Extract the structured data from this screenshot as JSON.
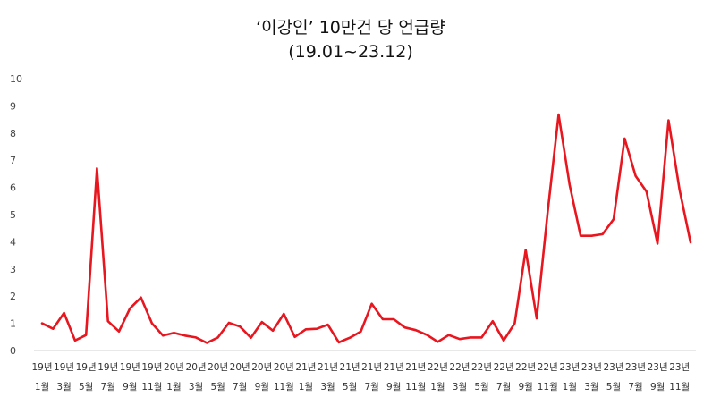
{
  "chart_data": {
    "type": "line",
    "title": "‘이강인’ 10만건 당 언급량",
    "subtitle": "(19.01~23.12)",
    "xlabel": "",
    "ylabel": "",
    "ylim": [
      0,
      10
    ],
    "yticks": [
      "0",
      "1",
      "2",
      "3",
      "4",
      "5",
      "6",
      "7",
      "8",
      "9",
      "10"
    ],
    "grid": false,
    "legend": "none",
    "line_color": "#e8161f",
    "x_tick_labels": [
      {
        "year": "19년",
        "month": "1월"
      },
      {
        "year": "19년",
        "month": "3월"
      },
      {
        "year": "19년",
        "month": "5월"
      },
      {
        "year": "19년",
        "month": "7월"
      },
      {
        "year": "19년",
        "month": "9월"
      },
      {
        "year": "19년",
        "month": "11월"
      },
      {
        "year": "20년",
        "month": "1월"
      },
      {
        "year": "20년",
        "month": "3월"
      },
      {
        "year": "20년",
        "month": "5월"
      },
      {
        "year": "20년",
        "month": "7월"
      },
      {
        "year": "20년",
        "month": "9월"
      },
      {
        "year": "20년",
        "month": "11월"
      },
      {
        "year": "21년",
        "month": "1월"
      },
      {
        "year": "21년",
        "month": "3월"
      },
      {
        "year": "21년",
        "month": "5월"
      },
      {
        "year": "21년",
        "month": "7월"
      },
      {
        "year": "21년",
        "month": "9월"
      },
      {
        "year": "21년",
        "month": "11월"
      },
      {
        "year": "22년",
        "month": "1월"
      },
      {
        "year": "22년",
        "month": "3월"
      },
      {
        "year": "22년",
        "month": "5월"
      },
      {
        "year": "22년",
        "month": "7월"
      },
      {
        "year": "22년",
        "month": "9월"
      },
      {
        "year": "22년",
        "month": "11월"
      },
      {
        "year": "23년",
        "month": "1월"
      },
      {
        "year": "23년",
        "month": "3월"
      },
      {
        "year": "23년",
        "month": "5월"
      },
      {
        "year": "23년",
        "month": "7월"
      },
      {
        "year": "23년",
        "month": "9월"
      },
      {
        "year": "23년",
        "month": "11월"
      }
    ],
    "values": [
      1.0,
      0.8,
      1.38,
      0.37,
      0.57,
      6.7,
      1.08,
      0.7,
      1.55,
      1.95,
      1.0,
      0.55,
      0.65,
      0.55,
      0.48,
      0.28,
      0.48,
      1.02,
      0.88,
      0.47,
      1.05,
      0.73,
      1.35,
      0.5,
      0.78,
      0.8,
      0.95,
      0.3,
      0.47,
      0.7,
      1.72,
      1.15,
      1.15,
      0.85,
      0.75,
      0.58,
      0.32,
      0.57,
      0.42,
      0.48,
      0.48,
      1.08,
      0.37,
      1.0,
      3.7,
      1.18,
      5.1,
      8.68,
      6.1,
      4.22,
      4.22,
      4.28,
      4.83,
      7.8,
      6.42,
      5.85,
      3.93,
      8.47,
      5.92,
      3.98
    ]
  }
}
